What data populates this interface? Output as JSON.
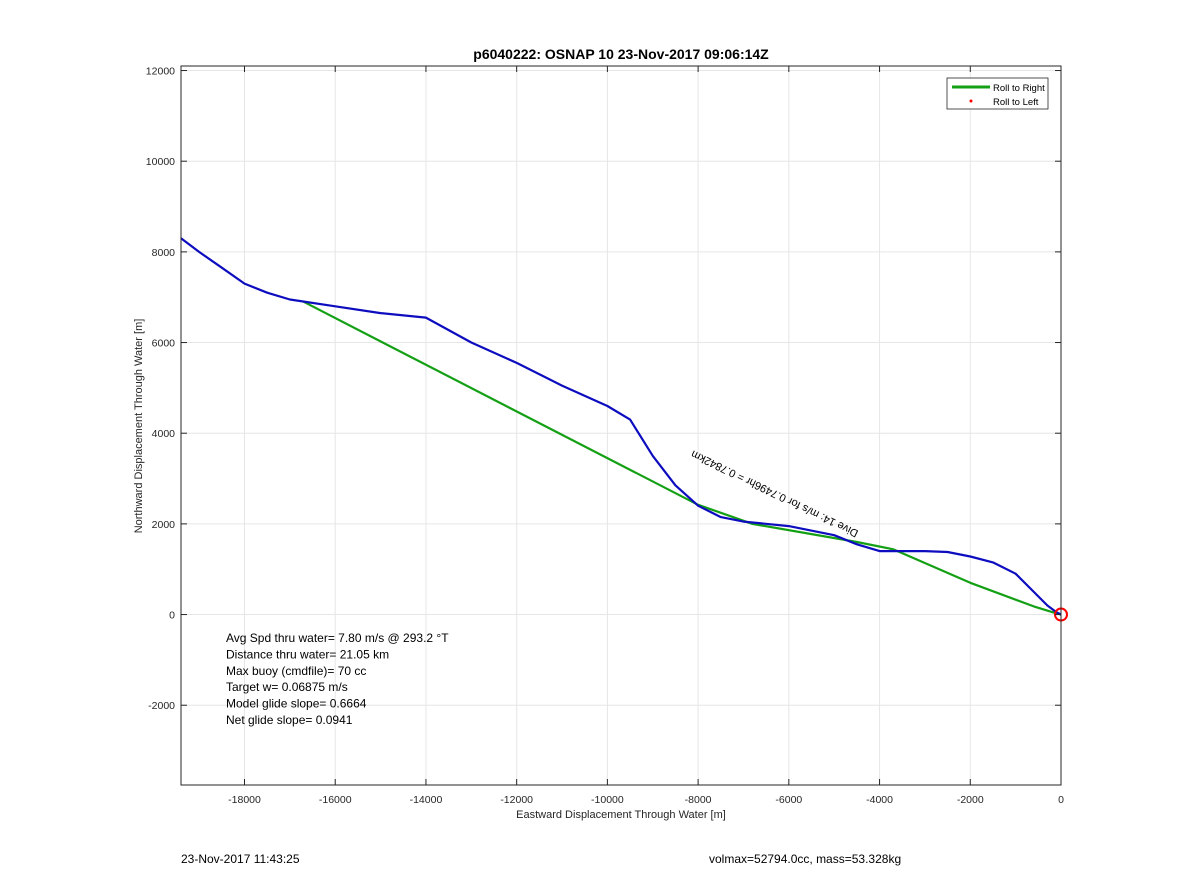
{
  "chart_data": {
    "type": "line",
    "title": "p6040222: OSNAP 10 23-Nov-2017 09:06:14Z",
    "xlabel": "Eastward Displacement Through Water [m]",
    "ylabel": "Northward Displacement Through Water [m]",
    "xlim": [
      -19400,
      0
    ],
    "ylim": [
      -3760,
      12100
    ],
    "xticks": [
      -18000,
      -16000,
      -14000,
      -12000,
      -10000,
      -8000,
      -6000,
      -4000,
      -2000,
      0
    ],
    "yticks": [
      -2000,
      0,
      2000,
      4000,
      6000,
      8000,
      10000,
      12000
    ],
    "xtick_labels": [
      "-18000",
      "-16000",
      "-14000",
      "-12000",
      "-10000",
      "-8000",
      "-6000",
      "-4000",
      "-2000",
      "0"
    ],
    "ytick_labels": [
      "-2000",
      "0",
      "2000",
      "4000",
      "6000",
      "8000",
      "10000",
      "12000"
    ],
    "grid": true,
    "legend_position": "top-right",
    "series": [
      {
        "name": "Roll to Right",
        "color": "#14a014",
        "x": [
          -16700,
          -8000,
          -6800,
          -4500,
          -3700,
          -2000,
          -600,
          -150,
          0
        ],
        "y": [
          6900,
          2420,
          2000,
          1600,
          1440,
          700,
          180,
          40,
          0
        ]
      },
      {
        "name": "Roll to Left",
        "color": "#ff0000",
        "marker": "dot",
        "x": [],
        "y": []
      },
      {
        "name": "",
        "color": "#0d0dbf",
        "x": [
          -19400,
          -19000,
          -18500,
          -18000,
          -17500,
          -17000,
          -16000,
          -15000,
          -14000,
          -13000,
          -12000,
          -11000,
          -10000,
          -9500,
          -9000,
          -8500,
          -8000,
          -7500,
          -7000,
          -6000,
          -5000,
          -4500,
          -4000,
          -3500,
          -3000,
          -2500,
          -2000,
          -1500,
          -1000,
          -600,
          -300,
          -100,
          0
        ],
        "y": [
          8300,
          8000,
          7650,
          7300,
          7100,
          6950,
          6800,
          6650,
          6550,
          6000,
          5550,
          5050,
          4600,
          4300,
          3500,
          2850,
          2400,
          2150,
          2050,
          1950,
          1750,
          1550,
          1400,
          1400,
          1400,
          1380,
          1280,
          1150,
          900,
          500,
          200,
          50,
          0
        ]
      }
    ],
    "stats_lines": [
      "Avg Spd thru water=  7.80 m/s @ 293.2 °T",
      "Distance thru water= 21.05 km",
      "Max buoy (cmdfile)= 70 cc",
      "Target w= 0.06875 m/s",
      "Model glide slope= 0.6664",
      "Net glide slope= 0.0941"
    ],
    "annotation": "Dive 14: m/s for 0.7496hr = 0.7842km",
    "end_marker": {
      "x": 0,
      "y": 0,
      "color": "#ff0000",
      "shape": "circle"
    },
    "footer_left": "23-Nov-2017 11:43:25",
    "footer_right": "volmax=52794.0cc, mass=53.328kg"
  }
}
